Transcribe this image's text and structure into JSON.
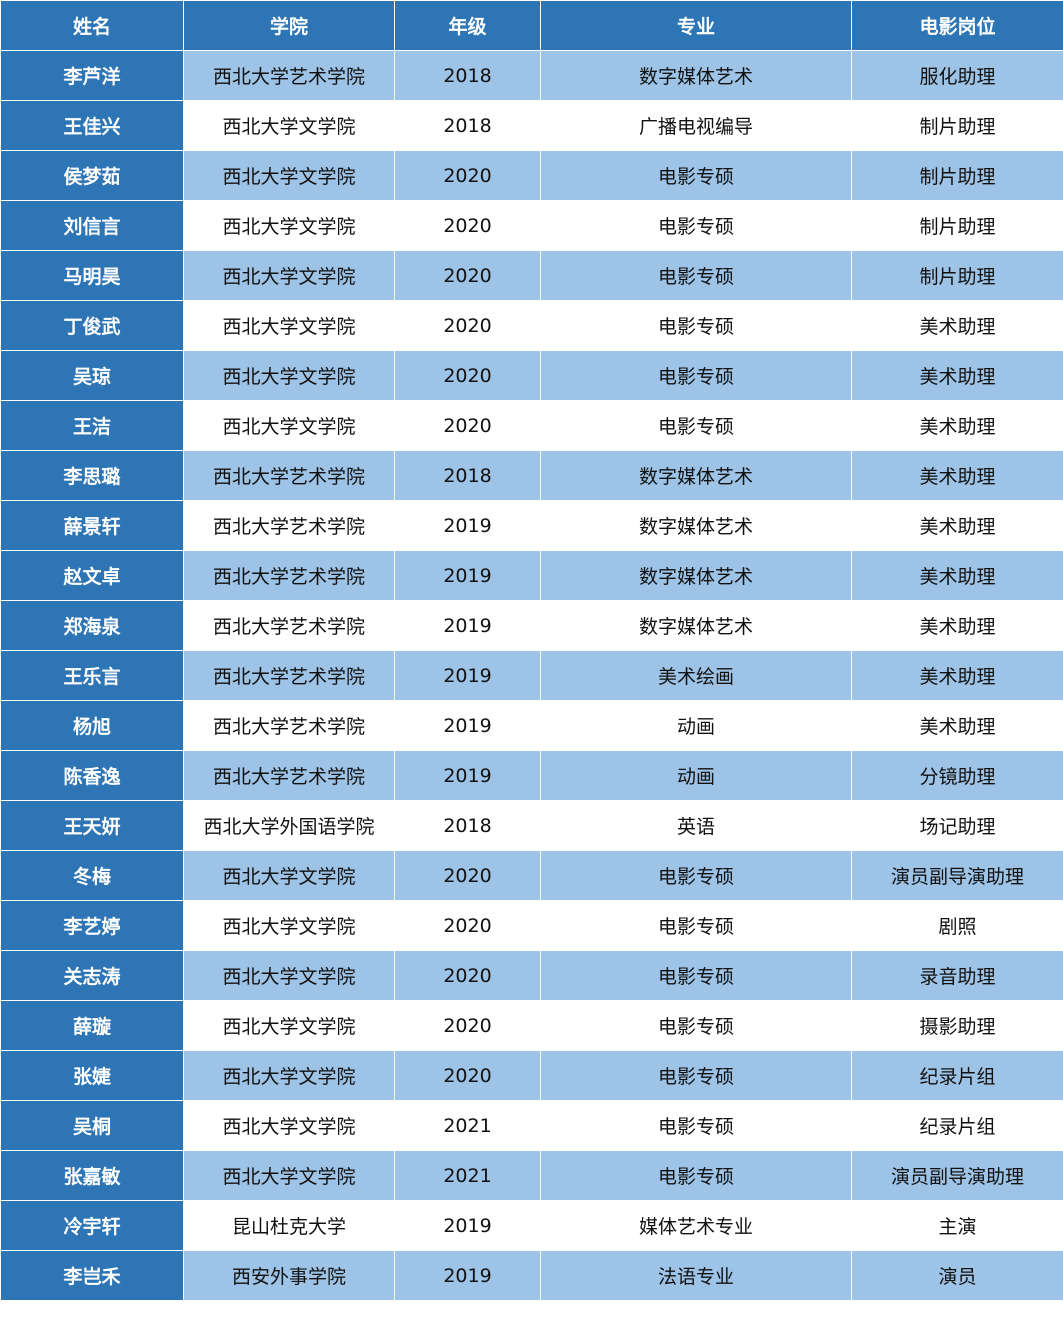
{
  "colors": {
    "header": "#2e75b6",
    "name_column": "#2e75b6",
    "stripe": "#9dc3e6",
    "plain": "#ffffff"
  },
  "headers": [
    "姓名",
    "学院",
    "年级",
    "专业",
    "电影岗位"
  ],
  "rows": [
    [
      "李芦洋",
      "西北大学艺术学院",
      "2018",
      "数字媒体艺术",
      "服化助理"
    ],
    [
      "王佳兴",
      "西北大学文学院",
      "2018",
      "广播电视编导",
      "制片助理"
    ],
    [
      "侯梦茹",
      "西北大学文学院",
      "2020",
      "电影专硕",
      "制片助理"
    ],
    [
      "刘信言",
      "西北大学文学院",
      "2020",
      "电影专硕",
      "制片助理"
    ],
    [
      "马明昊",
      "西北大学文学院",
      "2020",
      "电影专硕",
      "制片助理"
    ],
    [
      "丁俊武",
      "西北大学文学院",
      "2020",
      "电影专硕",
      "美术助理"
    ],
    [
      "吴琼",
      "西北大学文学院",
      "2020",
      "电影专硕",
      "美术助理"
    ],
    [
      "王洁",
      "西北大学文学院",
      "2020",
      "电影专硕",
      "美术助理"
    ],
    [
      "李思璐",
      "西北大学艺术学院",
      "2018",
      "数字媒体艺术",
      "美术助理"
    ],
    [
      "薛景轩",
      "西北大学艺术学院",
      "2019",
      "数字媒体艺术",
      "美术助理"
    ],
    [
      "赵文卓",
      "西北大学艺术学院",
      "2019",
      "数字媒体艺术",
      "美术助理"
    ],
    [
      "郑海泉",
      "西北大学艺术学院",
      "2019",
      "数字媒体艺术",
      "美术助理"
    ],
    [
      "王乐言",
      "西北大学艺术学院",
      "2019",
      "美术绘画",
      "美术助理"
    ],
    [
      "杨旭",
      "西北大学艺术学院",
      "2019",
      "动画",
      "美术助理"
    ],
    [
      "陈香逸",
      "西北大学艺术学院",
      "2019",
      "动画",
      "分镜助理"
    ],
    [
      "王天妍",
      "西北大学外国语学院",
      "2018",
      "英语",
      "场记助理"
    ],
    [
      "冬梅",
      "西北大学文学院",
      "2020",
      "电影专硕",
      "演员副导演助理"
    ],
    [
      "李艺婷",
      "西北大学文学院",
      "2020",
      "电影专硕",
      "剧照"
    ],
    [
      "关志涛",
      "西北大学文学院",
      "2020",
      "电影专硕",
      "录音助理"
    ],
    [
      "薛璇",
      "西北大学文学院",
      "2020",
      "电影专硕",
      "摄影助理"
    ],
    [
      "张婕",
      "西北大学文学院",
      "2020",
      "电影专硕",
      "纪录片组"
    ],
    [
      "吴桐",
      "西北大学文学院",
      "2021",
      "电影专硕",
      "纪录片组"
    ],
    [
      "张嘉敏",
      "西北大学文学院",
      "2021",
      "电影专硕",
      "演员副导演助理"
    ],
    [
      "冷宇轩",
      "昆山杜克大学",
      "2019",
      "媒体艺术专业",
      "主演"
    ],
    [
      "李岂禾",
      "西安外事学院",
      "2019",
      "法语专业",
      "演员"
    ]
  ]
}
